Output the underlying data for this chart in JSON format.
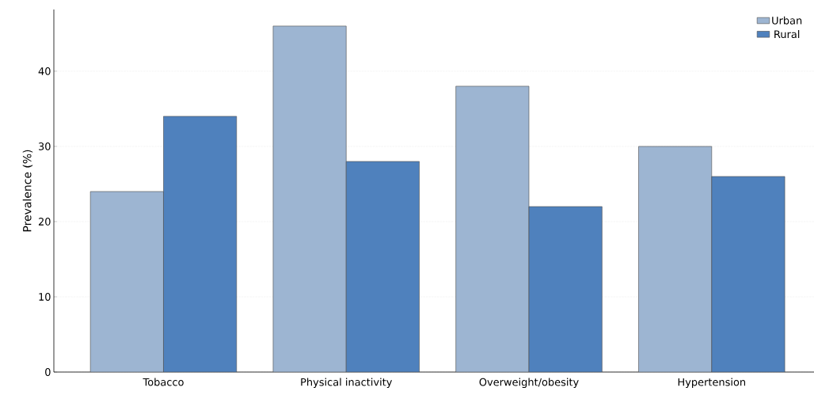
{
  "chart_data": {
    "type": "bar",
    "ylabel": "Prevalence (%)",
    "categories": [
      "Tobacco",
      "Physical inactivity",
      "Overweight/obesity",
      "Hypertension"
    ],
    "series": [
      {
        "name": "Urban",
        "color": "#9db5d2",
        "values": [
          24,
          46,
          38,
          30
        ]
      },
      {
        "name": "Rural",
        "color": "#4f81bd",
        "values": [
          34,
          28,
          22,
          26
        ]
      }
    ],
    "ylim": [
      0,
      48.2
    ],
    "yticks": [
      0,
      10,
      20,
      30,
      40
    ],
    "grid": "y",
    "legend": "top right"
  }
}
